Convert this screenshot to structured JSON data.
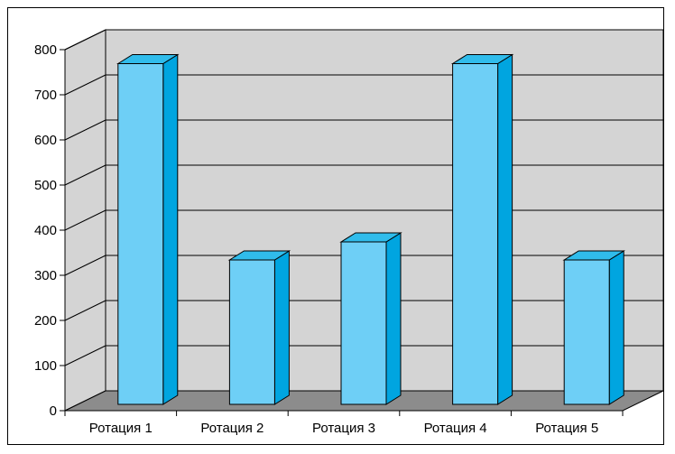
{
  "chart_data": {
    "type": "bar",
    "categories": [
      "Ротация 1",
      "Ротация 2",
      "Ротация 3",
      "Ротация 4",
      "Ротация 5"
    ],
    "values": [
      755,
      320,
      360,
      755,
      320
    ],
    "title": "",
    "xlabel": "",
    "ylabel": "",
    "ylim": [
      0,
      800
    ],
    "yticks": [
      "0",
      "100",
      "200",
      "300",
      "400",
      "500",
      "600",
      "700",
      "800"
    ],
    "grid": true,
    "legend": "none",
    "three_d": true,
    "colors": {
      "bar_front": "#6ECFF6",
      "bar_side": "#00A5E0",
      "bar_top": "#30BCEB",
      "wall": "#D4D4D4",
      "floor": "#8C8C8C",
      "grid": "#000000",
      "frame": "#000000"
    }
  }
}
